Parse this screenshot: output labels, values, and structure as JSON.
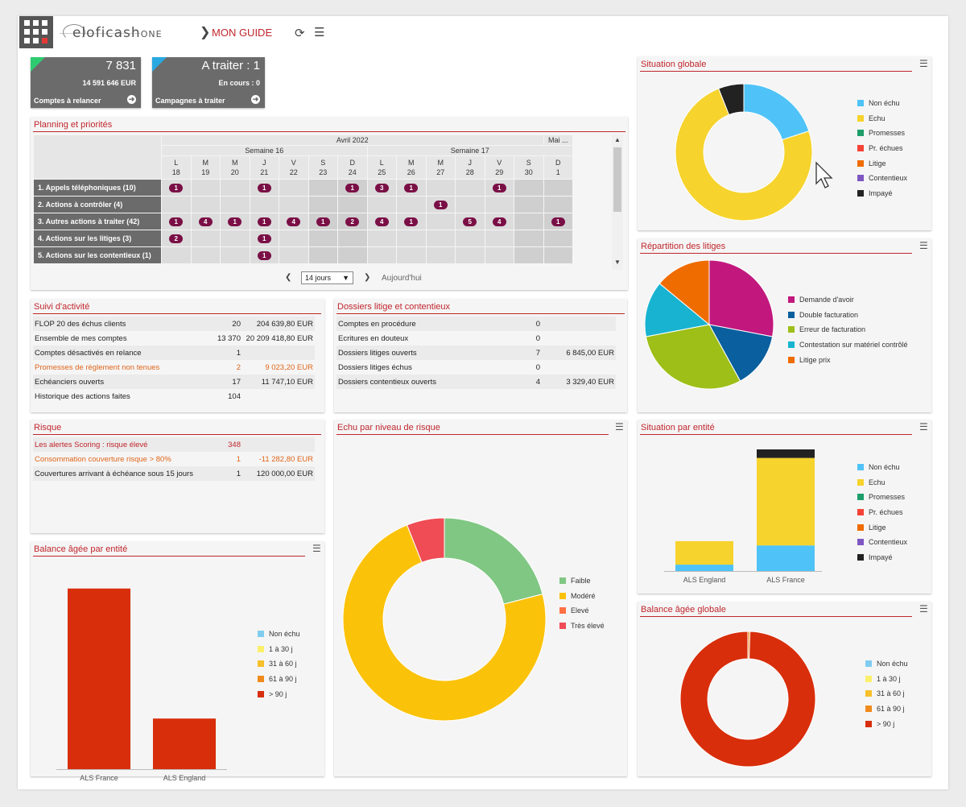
{
  "header": {
    "brand": "eloficash",
    "brand_suffix": "ONE",
    "breadcrumb_sep": "❯",
    "guide": "MON GUIDE"
  },
  "kpis": [
    {
      "big": "7 831",
      "sub": "14 591 646 EUR",
      "label": "Comptes à relancer",
      "accent": "#2ecc71"
    },
    {
      "big": "A traiter : 1",
      "sub": "En cours : 0",
      "label": "Campagnes à traiter",
      "accent": "#29a9e1"
    }
  ],
  "planning": {
    "title": "Planning et priorités",
    "month": "Avril 2022",
    "month_next": "Mai ...",
    "week16": "Semaine 16",
    "week17": "Semaine 17",
    "days": [
      {
        "d": "L",
        "n": "18"
      },
      {
        "d": "M",
        "n": "19"
      },
      {
        "d": "M",
        "n": "20"
      },
      {
        "d": "J",
        "n": "21"
      },
      {
        "d": "V",
        "n": "22"
      },
      {
        "d": "S",
        "n": "23"
      },
      {
        "d": "D",
        "n": "24"
      },
      {
        "d": "L",
        "n": "25"
      },
      {
        "d": "M",
        "n": "26"
      },
      {
        "d": "M",
        "n": "27"
      },
      {
        "d": "J",
        "n": "28"
      },
      {
        "d": "V",
        "n": "29"
      },
      {
        "d": "S",
        "n": "30"
      },
      {
        "d": "D",
        "n": "1"
      }
    ],
    "rows": [
      {
        "label": "1. Appels téléphoniques (10)",
        "cells": [
          "1",
          "",
          "",
          "1",
          "",
          "",
          "1",
          "3",
          "1",
          "",
          "",
          "1",
          "",
          ""
        ]
      },
      {
        "label": "2. Actions à contrôler (4)",
        "cells": [
          "",
          "",
          "",
          "",
          "",
          "",
          "",
          "",
          "",
          "1",
          "",
          "",
          "",
          ""
        ]
      },
      {
        "label": "3. Autres actions à traiter (42)",
        "cells": [
          "1",
          "4",
          "1",
          "1",
          "4",
          "1",
          "2",
          "4",
          "1",
          "",
          "5",
          "4",
          "",
          "1"
        ]
      },
      {
        "label": "4. Actions sur les litiges (3)",
        "cells": [
          "2",
          "",
          "",
          "1",
          "",
          "",
          "",
          "",
          "",
          "",
          "",
          "",
          "",
          ""
        ]
      },
      {
        "label": "5. Actions sur les contentieux (1)",
        "cells": [
          "",
          "",
          "",
          "1",
          "",
          "",
          "",
          "",
          "",
          "",
          "",
          "",
          "",
          ""
        ]
      }
    ],
    "range_value": "14 jours",
    "today": "Aujourd'hui"
  },
  "suivi": {
    "title": "Suivi d'activité",
    "rows": [
      {
        "label": "FLOP 20 des échus clients",
        "count": "20",
        "amount": "204 639,80 EUR",
        "style": ""
      },
      {
        "label": "Ensemble de mes comptes",
        "count": "13 370",
        "amount": "20 209 418,80 EUR",
        "style": ""
      },
      {
        "label": "Comptes désactivés en relance",
        "count": "1",
        "amount": "",
        "style": ""
      },
      {
        "label": "Promesses de règlement non tenues",
        "count": "2",
        "amount": "9 023,20 EUR",
        "style": "warn"
      },
      {
        "label": "Echéanciers ouverts",
        "count": "17",
        "amount": "11 747,10 EUR",
        "style": ""
      },
      {
        "label": "Historique des actions faites",
        "count": "104",
        "amount": "",
        "style": ""
      }
    ]
  },
  "dossiers": {
    "title": "Dossiers litige et contentieux",
    "rows": [
      {
        "label": "Comptes en procédure",
        "count": "0",
        "amount": ""
      },
      {
        "label": "Ecritures en douteux",
        "count": "0",
        "amount": ""
      },
      {
        "label": "Dossiers litiges ouverts",
        "count": "7",
        "amount": "6 845,00 EUR"
      },
      {
        "label": "Dossiers litiges échus",
        "count": "0",
        "amount": ""
      },
      {
        "label": "Dossiers contentieux ouverts",
        "count": "4",
        "amount": "3 329,40 EUR"
      }
    ]
  },
  "risque": {
    "title": "Risque",
    "rows": [
      {
        "label": "Les alertes Scoring : risque élevé",
        "count": "348",
        "amount": "",
        "style": "alert"
      },
      {
        "label": "Consommation couverture risque > 80%",
        "count": "1",
        "amount": "-11 282,80 EUR",
        "style": "warn"
      },
      {
        "label": "Couvertures arrivant à échéance sous 15 jours",
        "count": "1",
        "amount": "120 000,00 EUR",
        "style": ""
      }
    ]
  },
  "titles": {
    "situation_globale": "Situation globale",
    "repartition": "Répartition des litiges",
    "situation_entite": "Situation par entité",
    "balance_globale": "Balance âgée globale",
    "echu_risque": "Echu par niveau de risque",
    "balance_entite": "Balance âgée par entité"
  },
  "chart_data": [
    {
      "type": "pie",
      "id": "situation_globale",
      "title": "Situation globale",
      "donut": true,
      "categories": [
        "Non échu",
        "Echu",
        "Promesses",
        "Pr. échues",
        "Litige",
        "Contentieux",
        "Impayé"
      ],
      "values": [
        20,
        74,
        0,
        0,
        0,
        0,
        6
      ],
      "colors": [
        "#4fc3f7",
        "#f6d32d",
        "#1e9e6a",
        "#f44336",
        "#ef6c00",
        "#7e57c2",
        "#222222"
      ]
    },
    {
      "type": "pie",
      "id": "repartition_litiges",
      "title": "Répartition des litiges",
      "donut": false,
      "categories": [
        "Demande d'avoir",
        "Double facturation",
        "Erreur de facturation",
        "Contestation sur matériel contrôlé",
        "Litige prix"
      ],
      "values": [
        28,
        14,
        30,
        14,
        14
      ],
      "colors": [
        "#c2187e",
        "#0a5f9e",
        "#9dbf18",
        "#17b3d1",
        "#ef6c00"
      ]
    },
    {
      "type": "bar",
      "id": "situation_entite",
      "title": "Situation par entité",
      "stacked": true,
      "categories": [
        "ALS England",
        "ALS France"
      ],
      "series": [
        {
          "name": "Non échu",
          "values": [
            0.3,
            1.2
          ]
        },
        {
          "name": "Echu",
          "values": [
            1.1,
            4.1
          ]
        },
        {
          "name": "Promesses",
          "values": [
            0,
            0
          ]
        },
        {
          "name": "Pr. échues",
          "values": [
            0,
            0
          ]
        },
        {
          "name": "Litige",
          "values": [
            0,
            0
          ]
        },
        {
          "name": "Contentieux",
          "values": [
            0,
            0
          ]
        },
        {
          "name": "Impayé",
          "values": [
            0,
            0.4
          ]
        }
      ],
      "ylim": [
        0,
        5.7
      ],
      "colors": [
        "#4fc3f7",
        "#f6d32d",
        "#1e9e6a",
        "#f44336",
        "#ef6c00",
        "#7e57c2",
        "#222222"
      ]
    },
    {
      "type": "pie",
      "id": "balance_globale",
      "title": "Balance âgée globale",
      "donut": true,
      "categories": [
        "Non échu",
        "1 à 30 j",
        "31 à 60 j",
        "61 à 90 j",
        "> 90 j"
      ],
      "values": [
        0,
        0,
        0,
        0.5,
        99.5
      ],
      "colors": [
        "#81cdf0",
        "#fbf06a",
        "#f6c02a",
        "#f08a1c",
        "#d82e0b"
      ]
    },
    {
      "type": "pie",
      "id": "echu_risque",
      "title": "Echu par niveau de risque",
      "donut": true,
      "categories": [
        "Faible",
        "Modéré",
        "Elevé",
        "Très élevé"
      ],
      "values": [
        21,
        73,
        0,
        6
      ],
      "colors": [
        "#80c783",
        "#fbc20a",
        "#ff7043",
        "#ef4c55"
      ]
    },
    {
      "type": "bar",
      "id": "balance_entite",
      "title": "Balance âgée par entité",
      "stacked": true,
      "categories": [
        "ALS France",
        "ALS England"
      ],
      "series": [
        {
          "name": "Non échu",
          "values": [
            0,
            0
          ]
        },
        {
          "name": "1 à 30 j",
          "values": [
            0,
            0
          ]
        },
        {
          "name": "31 à 60 j",
          "values": [
            0,
            0
          ]
        },
        {
          "name": "61 à 90 j",
          "values": [
            0,
            0
          ]
        },
        {
          "name": "> 90 j",
          "values": [
            232,
            65
          ]
        }
      ],
      "ylim": [
        0,
        240
      ],
      "colors": [
        "#81cdf0",
        "#fbf06a",
        "#f6c02a",
        "#f08a1c",
        "#d82e0b"
      ]
    }
  ]
}
